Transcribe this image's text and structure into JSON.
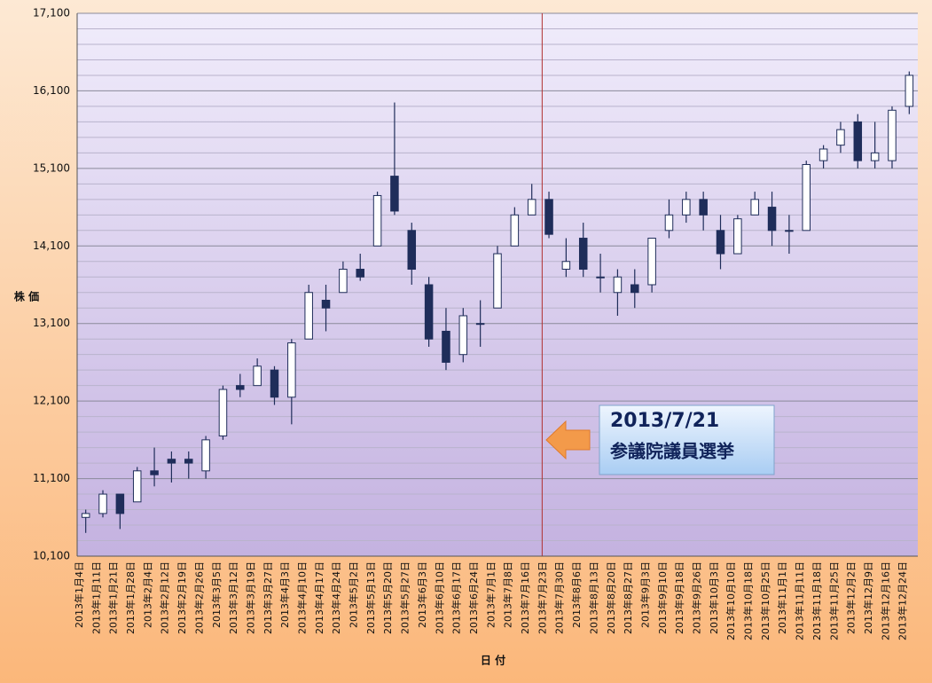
{
  "chart_data": {
    "type": "candlestick",
    "x_label": "日 付",
    "y_label": "株 価",
    "categories": [
      "2013年1月4日",
      "2013年1月11日",
      "2013年1月21日",
      "2013年1月28日",
      "2013年2月4日",
      "2013年2月12日",
      "2013年2月19日",
      "2013年2月26日",
      "2013年3月5日",
      "2013年3月12日",
      "2013年3月19日",
      "2013年3月27日",
      "2013年4月3日",
      "2013年4月10日",
      "2013年4月17日",
      "2013年4月24日",
      "2013年5月2日",
      "2013年5月13日",
      "2013年5月20日",
      "2013年5月27日",
      "2013年6月3日",
      "2013年6月10日",
      "2013年6月17日",
      "2013年6月24日",
      "2013年7月1日",
      "2013年7月8日",
      "2013年7月16日",
      "2013年7月23日",
      "2013年7月30日",
      "2013年8月6日",
      "2013年8月13日",
      "2013年8月20日",
      "2013年8月27日",
      "2013年9月3日",
      "2013年9月10日",
      "2013年9月18日",
      "2013年9月26日",
      "2013年10月3日",
      "2013年10月10日",
      "2013年10月18日",
      "2013年10月25日",
      "2013年11月1日",
      "2013年11月11日",
      "2013年11月18日",
      "2013年11月25日",
      "2013年12月2日",
      "2013年12月9日",
      "2013年12月16日",
      "2013年12月24日"
    ],
    "series": [
      {
        "up_color": "#ffffff",
        "down_color": "#1f2d5a",
        "edge_color": "#1f2d5a",
        "open": [
          10600,
          10650,
          10900,
          10800,
          11200,
          11350,
          11350,
          11200,
          11650,
          12300,
          12300,
          12500,
          12150,
          12900,
          13400,
          13500,
          13800,
          14100,
          15000,
          14300,
          13600,
          13000,
          12700,
          13100,
          13300,
          14100,
          14500,
          14700,
          13800,
          14200,
          13700,
          13500,
          13600,
          13600,
          14300,
          14500,
          14700,
          14300,
          14000,
          14500,
          14600,
          14300,
          14300,
          15200,
          15400,
          15700,
          15200,
          15200,
          15900
        ],
        "high": [
          10700,
          10950,
          10900,
          11250,
          11500,
          11450,
          11450,
          11650,
          12300,
          12450,
          12650,
          12550,
          12900,
          13600,
          13600,
          13900,
          14000,
          14800,
          15950,
          14400,
          13700,
          13300,
          13300,
          13400,
          14100,
          14600,
          14900,
          14800,
          14200,
          14400,
          14000,
          13800,
          13800,
          14200,
          14700,
          14800,
          14800,
          14500,
          14500,
          14800,
          14800,
          14500,
          15200,
          15400,
          15700,
          15800,
          15700,
          15900,
          16350
        ],
        "low": [
          10400,
          10600,
          10450,
          10800,
          11000,
          11050,
          11100,
          11100,
          11600,
          12150,
          12300,
          12050,
          11800,
          12900,
          13000,
          13500,
          13650,
          14100,
          14500,
          13600,
          12800,
          12500,
          12600,
          12800,
          13300,
          14100,
          14500,
          14200,
          13700,
          13700,
          13500,
          13200,
          13300,
          13500,
          14200,
          14400,
          14300,
          13800,
          14000,
          14500,
          14100,
          14000,
          14300,
          15100,
          15300,
          15100,
          15100,
          15100,
          15800
        ],
        "close": [
          10650,
          10900,
          10650,
          11200,
          11150,
          11300,
          11300,
          11600,
          12250,
          12250,
          12550,
          12150,
          12850,
          13500,
          13300,
          13800,
          13700,
          14750,
          14550,
          13800,
          12900,
          12600,
          13200,
          13100,
          14000,
          14500,
          14700,
          14250,
          13900,
          13800,
          13700,
          13700,
          13500,
          14200,
          14500,
          14700,
          14500,
          14000,
          14450,
          14700,
          14300,
          14300,
          15150,
          15350,
          15600,
          15200,
          15300,
          15850,
          16300
        ]
      }
    ],
    "ylim": [
      10100,
      17100
    ],
    "yticks": [
      {
        "value": 10100,
        "label": "10,100"
      },
      {
        "value": 11100,
        "label": "11,100"
      },
      {
        "value": 12100,
        "label": "12,100"
      },
      {
        "value": 13100,
        "label": "13,100"
      },
      {
        "value": 14100,
        "label": "14,100"
      },
      {
        "value": 15100,
        "label": "15,100"
      },
      {
        "value": 16100,
        "label": "16,100"
      },
      {
        "value": 17100,
        "label": "17,100"
      }
    ],
    "grid": true,
    "event": {
      "category": "2013年7月23日",
      "color": "#b03030",
      "date_text": "2013/7/21",
      "text": "参議院議員選挙"
    }
  }
}
